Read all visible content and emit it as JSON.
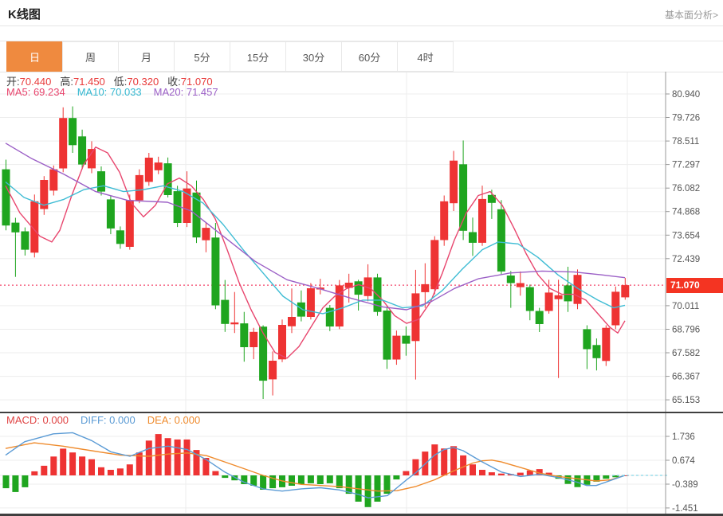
{
  "header": {
    "title": "K线图",
    "link": "基本面分析>"
  },
  "tabs": {
    "items": [
      "日",
      "周",
      "月",
      "5分",
      "15分",
      "30分",
      "60分",
      "4时"
    ],
    "selected_index": 0
  },
  "info": {
    "ohlc": [
      {
        "label": "开:",
        "value": "70.440"
      },
      {
        "label": "高:",
        "value": "71.450"
      },
      {
        "label": "低:",
        "value": "70.320"
      },
      {
        "label": "收:",
        "value": "71.070"
      }
    ],
    "ma": [
      {
        "label": "MA5:",
        "value": "69.234",
        "color": "#e8466e"
      },
      {
        "label": "MA10:",
        "value": "70.033",
        "color": "#33b7d0"
      },
      {
        "label": "MA20:",
        "value": "71.457",
        "color": "#9b5fc6"
      }
    ]
  },
  "macd_info": [
    {
      "label": "MACD:",
      "value": "0.000",
      "color": "#e04444"
    },
    {
      "label": "DIFF:",
      "value": "0.000",
      "color": "#5b9bd5"
    },
    {
      "label": "DEA:",
      "value": "0.000",
      "color": "#ef8b2d"
    }
  ],
  "price_badge": {
    "value": "71.070",
    "color": "#f43422"
  },
  "colors": {
    "up": "#ee3333",
    "down": "#1fa51f",
    "ma5": "#e8466e",
    "ma10": "#3ebcd4",
    "ma20": "#9b5fc6",
    "diff": "#5b9bd5",
    "dea": "#ef8b2d",
    "grid": "#ededed",
    "axis": "#999999",
    "tick_text": "#555555",
    "price_line": "#f4456a",
    "zero_dash": "#86d7e8",
    "pane_divider": "#3f3f3f",
    "tab_selected_bg": "#ef8a3f"
  },
  "chart_data": {
    "type": "candlestick",
    "title": "K线图",
    "legend": [
      "MA5",
      "MA10",
      "MA20",
      "MACD",
      "DIFF",
      "DEA"
    ],
    "main": {
      "y_ticks": [
        "80.940",
        "79.726",
        "78.511",
        "77.297",
        "76.082",
        "74.868",
        "73.654",
        "72.439",
        "70.011",
        "68.796",
        "67.582",
        "66.367",
        "65.153"
      ],
      "current_price": 71.07,
      "x_gridlines": [
        233,
        510,
        787
      ],
      "candles": [
        [
          77.05,
          77.55,
          73.9,
          74.15
        ],
        [
          74.3,
          74.55,
          71.5,
          73.8
        ],
        [
          73.85,
          74.05,
          72.6,
          72.9
        ],
        [
          72.75,
          75.75,
          72.5,
          75.4
        ],
        [
          75.0,
          76.7,
          74.7,
          76.5
        ],
        [
          75.95,
          77.25,
          75.7,
          77.05
        ],
        [
          77.1,
          80.25,
          76.9,
          79.7
        ],
        [
          79.7,
          80.3,
          77.9,
          78.3
        ],
        [
          78.75,
          79.1,
          77.05,
          77.3
        ],
        [
          77.1,
          78.5,
          76.85,
          78.1
        ],
        [
          76.95,
          77.2,
          75.7,
          75.9
        ],
        [
          75.5,
          75.7,
          73.7,
          74.0
        ],
        [
          73.9,
          74.1,
          72.95,
          73.2
        ],
        [
          73.05,
          75.75,
          72.9,
          75.45
        ],
        [
          75.45,
          77.05,
          75.3,
          76.75
        ],
        [
          76.4,
          77.9,
          76.2,
          77.65
        ],
        [
          77.0,
          77.7,
          76.8,
          77.4
        ],
        [
          77.36,
          77.66,
          75.6,
          75.72
        ],
        [
          75.92,
          76.2,
          74.07,
          74.28
        ],
        [
          74.28,
          76.95,
          74.07,
          76.06
        ],
        [
          75.85,
          76.47,
          73.25,
          73.53
        ],
        [
          73.39,
          74.28,
          72.77,
          74.03
        ],
        [
          73.53,
          74.28,
          69.83,
          70.03
        ],
        [
          70.31,
          71.34,
          68.66,
          69.07
        ],
        [
          69.05,
          70.72,
          68.6,
          69.15
        ],
        [
          69.1,
          69.69,
          67.12,
          67.87
        ],
        [
          67.87,
          68.87,
          67.25,
          68.66
        ],
        [
          68.93,
          69.0,
          65.2,
          66.14
        ],
        [
          66.21,
          67.65,
          65.38,
          67.17
        ],
        [
          67.24,
          69.3,
          67.1,
          69.02
        ],
        [
          68.95,
          70.9,
          68.6,
          69.43
        ],
        [
          70.18,
          70.8,
          69.2,
          69.45
        ],
        [
          69.43,
          71.18,
          69.3,
          70.91
        ],
        [
          70.85,
          71.4,
          70.6,
          70.95
        ],
        [
          69.9,
          70.05,
          68.7,
          68.94
        ],
        [
          68.94,
          71.34,
          68.8,
          71.06
        ],
        [
          70.93,
          71.66,
          70.17,
          71.2
        ],
        [
          71.27,
          71.35,
          69.76,
          70.58
        ],
        [
          70.51,
          72.15,
          70.24,
          71.47
        ],
        [
          71.47,
          71.66,
          69.49,
          69.69
        ],
        [
          69.76,
          69.97,
          66.75,
          67.23
        ],
        [
          67.23,
          68.73,
          66.96,
          68.46
        ],
        [
          68.46,
          68.94,
          67.43,
          68.05
        ],
        [
          68.19,
          71.86,
          66.2,
          70.65
        ],
        [
          70.71,
          72.2,
          69.9,
          71.12
        ],
        [
          70.86,
          73.6,
          70.6,
          73.4
        ],
        [
          73.4,
          75.7,
          73.1,
          75.4
        ],
        [
          75.3,
          78.0,
          74.9,
          77.5
        ],
        [
          77.31,
          78.54,
          73.4,
          73.88
        ],
        [
          73.81,
          74.56,
          72.58,
          73.26
        ],
        [
          73.26,
          76.21,
          73.1,
          75.52
        ],
        [
          75.73,
          76.0,
          74.49,
          75.32
        ],
        [
          74.99,
          75.46,
          71.64,
          71.78
        ],
        [
          71.57,
          71.8,
          69.9,
          71.18
        ],
        [
          70.97,
          71.78,
          70.53,
          71.18
        ],
        [
          70.97,
          71.1,
          69.26,
          69.74
        ],
        [
          69.74,
          69.9,
          68.65,
          69.06
        ],
        [
          69.74,
          71.35,
          69.6,
          70.69
        ],
        [
          70.35,
          71.35,
          66.28,
          70.55
        ],
        [
          71.06,
          72.02,
          69.69,
          70.24
        ],
        [
          70.1,
          71.88,
          69.83,
          71.6
        ],
        [
          68.8,
          69.0,
          66.74,
          67.77
        ],
        [
          67.98,
          68.32,
          66.67,
          67.3
        ],
        [
          67.16,
          69.0,
          66.9,
          68.87
        ],
        [
          69.0,
          71.0,
          68.8,
          70.73
        ],
        [
          70.44,
          71.45,
          70.32,
          71.07
        ]
      ],
      "ma5": [
        [
          7,
          76.2
        ],
        [
          25,
          74.8
        ],
        [
          50,
          73.6
        ],
        [
          65,
          73.3
        ],
        [
          75,
          73.9
        ],
        [
          90,
          75.7
        ],
        [
          105,
          77.3
        ],
        [
          120,
          78.2
        ],
        [
          135,
          77.9
        ],
        [
          150,
          76.9
        ],
        [
          165,
          75.3
        ],
        [
          180,
          74.6
        ],
        [
          195,
          75.2
        ],
        [
          210,
          76.3
        ],
        [
          225,
          76.6
        ],
        [
          240,
          76.2
        ],
        [
          255,
          75.5
        ],
        [
          270,
          74.5
        ],
        [
          285,
          72.9
        ],
        [
          300,
          71.2
        ],
        [
          315,
          69.8
        ],
        [
          330,
          68.6
        ],
        [
          345,
          67.6
        ],
        [
          360,
          67.3
        ],
        [
          375,
          67.9
        ],
        [
          390,
          68.9
        ],
        [
          405,
          69.9
        ],
        [
          420,
          70.5
        ],
        [
          435,
          70.9
        ],
        [
          450,
          71.1
        ],
        [
          465,
          70.9
        ],
        [
          480,
          70.3
        ],
        [
          495,
          69.5
        ],
        [
          510,
          69.1
        ],
        [
          525,
          69.3
        ],
        [
          540,
          70.2
        ],
        [
          555,
          71.7
        ],
        [
          570,
          73.4
        ],
        [
          585,
          74.8
        ],
        [
          600,
          75.7
        ],
        [
          615,
          75.9
        ],
        [
          630,
          75.2
        ],
        [
          645,
          74.0
        ],
        [
          660,
          72.7
        ],
        [
          675,
          71.6
        ],
        [
          690,
          70.9
        ],
        [
          705,
          70.6
        ],
        [
          720,
          70.6
        ],
        [
          735,
          70.3
        ],
        [
          750,
          69.6
        ],
        [
          765,
          68.9
        ],
        [
          775,
          68.6
        ],
        [
          784,
          69.234
        ]
      ],
      "ma10": [
        [
          7,
          76.4
        ],
        [
          30,
          75.6
        ],
        [
          55,
          75.2
        ],
        [
          80,
          75.5
        ],
        [
          105,
          76.0
        ],
        [
          130,
          76.2
        ],
        [
          155,
          75.9
        ],
        [
          180,
          76.0
        ],
        [
          205,
          76.2
        ],
        [
          230,
          75.9
        ],
        [
          255,
          75.3
        ],
        [
          280,
          74.2
        ],
        [
          305,
          72.9
        ],
        [
          330,
          71.7
        ],
        [
          355,
          70.5
        ],
        [
          380,
          69.8
        ],
        [
          405,
          69.6
        ],
        [
          430,
          69.9
        ],
        [
          455,
          70.3
        ],
        [
          480,
          70.3
        ],
        [
          505,
          69.9
        ],
        [
          530,
          70.0
        ],
        [
          555,
          70.8
        ],
        [
          580,
          71.9
        ],
        [
          605,
          72.9
        ],
        [
          625,
          73.3
        ],
        [
          650,
          73.2
        ],
        [
          675,
          72.5
        ],
        [
          700,
          71.6
        ],
        [
          725,
          70.9
        ],
        [
          750,
          70.3
        ],
        [
          770,
          69.9
        ],
        [
          784,
          70.033
        ]
      ],
      "ma20": [
        [
          7,
          78.4
        ],
        [
          40,
          77.6
        ],
        [
          80,
          76.8
        ],
        [
          120,
          75.9
        ],
        [
          160,
          75.45
        ],
        [
          210,
          75.35
        ],
        [
          240,
          74.9
        ],
        [
          280,
          73.6
        ],
        [
          320,
          72.3
        ],
        [
          360,
          71.35
        ],
        [
          400,
          70.9
        ],
        [
          440,
          70.4
        ],
        [
          480,
          69.95
        ],
        [
          510,
          69.8
        ],
        [
          540,
          70.2
        ],
        [
          570,
          70.9
        ],
        [
          600,
          71.4
        ],
        [
          640,
          71.7
        ],
        [
          680,
          71.8
        ],
        [
          720,
          71.75
        ],
        [
          755,
          71.6
        ],
        [
          784,
          71.457
        ]
      ]
    },
    "macd": {
      "y_ticks": [
        "1.736",
        "0.674",
        "-0.389",
        "-1.451"
      ],
      "bars": [
        -0.57,
        -0.74,
        -0.53,
        0.18,
        0.43,
        0.84,
        1.19,
        1.02,
        0.84,
        0.72,
        0.36,
        0.25,
        0.31,
        0.49,
        1.02,
        1.55,
        1.84,
        1.66,
        1.6,
        1.6,
        1.13,
        0.78,
        0.19,
        -0.11,
        -0.22,
        -0.39,
        -0.46,
        -0.64,
        -0.57,
        -0.53,
        -0.46,
        -0.39,
        -0.35,
        -0.39,
        -0.35,
        -0.57,
        -0.82,
        -1.17,
        -1.41,
        -1.17,
        -0.82,
        -0.18,
        0.19,
        0.72,
        1.06,
        1.38,
        1.2,
        1.3,
        0.89,
        0.49,
        0.25,
        0.14,
        0.08,
        0.06,
        0.12,
        0.22,
        0.28,
        0.12,
        -0.15,
        -0.38,
        -0.52,
        -0.42,
        -0.28,
        -0.15,
        -0.08,
        0.0
      ],
      "diff": [
        [
          7,
          0.9
        ],
        [
          31,
          1.5
        ],
        [
          67,
          1.85
        ],
        [
          91,
          1.9
        ],
        [
          115,
          1.55
        ],
        [
          139,
          1.05
        ],
        [
          163,
          0.85
        ],
        [
          187,
          1.2
        ],
        [
          211,
          1.3
        ],
        [
          235,
          1.15
        ],
        [
          259,
          0.7
        ],
        [
          282,
          0.15
        ],
        [
          306,
          -0.3
        ],
        [
          330,
          -0.6
        ],
        [
          354,
          -0.7
        ],
        [
          378,
          -0.6
        ],
        [
          402,
          -0.55
        ],
        [
          426,
          -0.65
        ],
        [
          450,
          -0.85
        ],
        [
          462,
          -1.0
        ],
        [
          486,
          -0.9
        ],
        [
          498,
          -0.55
        ],
        [
          510,
          -0.2
        ],
        [
          521,
          0.1
        ],
        [
          533,
          0.5
        ],
        [
          545,
          0.9
        ],
        [
          557,
          1.15
        ],
        [
          569,
          1.24
        ],
        [
          581,
          1.1
        ],
        [
          605,
          0.6
        ],
        [
          629,
          0.15
        ],
        [
          653,
          -0.05
        ],
        [
          677,
          0.05
        ],
        [
          701,
          -0.1
        ],
        [
          724,
          -0.3
        ],
        [
          736,
          -0.45
        ],
        [
          748,
          -0.45
        ],
        [
          760,
          -0.3
        ],
        [
          772,
          -0.15
        ],
        [
          784,
          0.0
        ]
      ],
      "dea": [
        [
          7,
          1.2
        ],
        [
          43,
          1.45
        ],
        [
          79,
          1.3
        ],
        [
          115,
          1.1
        ],
        [
          151,
          0.9
        ],
        [
          187,
          0.85
        ],
        [
          211,
          0.95
        ],
        [
          235,
          1.0
        ],
        [
          259,
          0.88
        ],
        [
          282,
          0.6
        ],
        [
          306,
          0.3
        ],
        [
          330,
          0.0
        ],
        [
          354,
          -0.25
        ],
        [
          378,
          -0.4
        ],
        [
          402,
          -0.45
        ],
        [
          426,
          -0.5
        ],
        [
          450,
          -0.6
        ],
        [
          474,
          -0.7
        ],
        [
          498,
          -0.68
        ],
        [
          521,
          -0.5
        ],
        [
          545,
          -0.2
        ],
        [
          569,
          0.2
        ],
        [
          593,
          0.55
        ],
        [
          605,
          0.65
        ],
        [
          617,
          0.68
        ],
        [
          629,
          0.6
        ],
        [
          653,
          0.35
        ],
        [
          677,
          0.1
        ],
        [
          701,
          -0.05
        ],
        [
          724,
          -0.15
        ],
        [
          748,
          -0.25
        ],
        [
          766,
          -0.2
        ],
        [
          784,
          0.0
        ]
      ]
    }
  }
}
